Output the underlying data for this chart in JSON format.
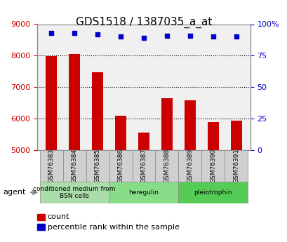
{
  "title": "GDS1518 / 1387035_a_at",
  "categories": [
    "GSM76383",
    "GSM76384",
    "GSM76385",
    "GSM76386",
    "GSM76387",
    "GSM76388",
    "GSM76389",
    "GSM76390",
    "GSM76391"
  ],
  "counts": [
    7980,
    8060,
    7480,
    6090,
    5560,
    6640,
    6580,
    5900,
    5940
  ],
  "percentiles": [
    93,
    93,
    92,
    90,
    89,
    91,
    91,
    90,
    90
  ],
  "ylim_left": [
    5000,
    9000
  ],
  "ylim_right": [
    0,
    100
  ],
  "yticks_left": [
    5000,
    6000,
    7000,
    8000,
    9000
  ],
  "yticks_right": [
    0,
    25,
    50,
    75,
    100
  ],
  "bar_color": "#cc0000",
  "dot_color": "#0000cc",
  "bar_width": 0.5,
  "groups": [
    {
      "label": "conditioned medium from\nBSN cells",
      "start": 0,
      "end": 3,
      "color": "#aaddaa"
    },
    {
      "label": "heregulin",
      "start": 3,
      "end": 6,
      "color": "#88dd88"
    },
    {
      "label": "pleiotrophin",
      "start": 6,
      "end": 9,
      "color": "#55cc55"
    }
  ],
  "legend_items": [
    {
      "color": "#cc0000",
      "label": "count"
    },
    {
      "color": "#0000cc",
      "label": "percentile rank within the sample"
    }
  ],
  "agent_label": "agent",
  "background_color": "#ffffff",
  "plot_bg_color": "#f0f0f0",
  "tick_label_color_left": "#cc0000",
  "tick_label_color_right": "#0000cc",
  "grid_color": "#000000",
  "title_fontsize": 11,
  "tick_fontsize": 8,
  "label_fontsize": 8
}
